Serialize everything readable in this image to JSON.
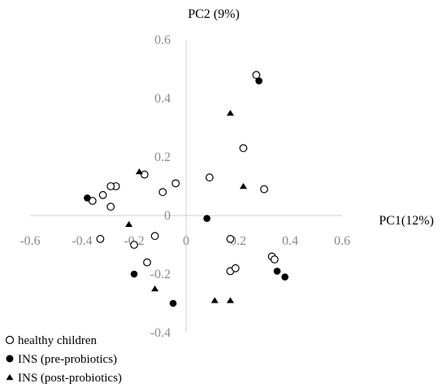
{
  "chart_data": {
    "type": "scatter",
    "xlabel": "PC1(12%)",
    "ylabel": "PC2 (9%)",
    "xlim": [
      -0.6,
      0.6
    ],
    "ylim": [
      -0.4,
      0.6
    ],
    "x_ticks": [
      -0.6,
      -0.4,
      -0.2,
      0,
      0.2,
      0.4,
      0.6
    ],
    "y_ticks": [
      0.6,
      0.4,
      0.2,
      0,
      -0.2,
      -0.4
    ],
    "x_tick_labels": [
      "-0.6",
      "-0.4",
      "-0.2",
      "0",
      "0.2",
      "0.4",
      "0.6"
    ],
    "y_tick_labels": [
      "0.6",
      "0.4",
      "0.2",
      "0",
      "-0.2",
      "-0.4"
    ],
    "grid": false,
    "legend_position": "bottom-left",
    "series": [
      {
        "name": "healthy children",
        "marker": "open-circle",
        "color": "#000000",
        "points": [
          [
            0.27,
            0.48
          ],
          [
            0.22,
            0.23
          ],
          [
            0.09,
            0.13
          ],
          [
            0.3,
            0.09
          ],
          [
            -0.04,
            0.11
          ],
          [
            -0.09,
            0.08
          ],
          [
            -0.16,
            0.14
          ],
          [
            -0.27,
            0.1
          ],
          [
            -0.29,
            0.1
          ],
          [
            -0.32,
            0.07
          ],
          [
            -0.36,
            0.05
          ],
          [
            -0.29,
            0.03
          ],
          [
            -0.33,
            -0.08
          ],
          [
            -0.12,
            -0.07
          ],
          [
            -0.2,
            -0.1
          ],
          [
            -0.15,
            -0.16
          ],
          [
            0.17,
            -0.08
          ],
          [
            0.17,
            -0.19
          ],
          [
            0.19,
            -0.18
          ],
          [
            0.33,
            -0.14
          ],
          [
            0.34,
            -0.15
          ]
        ]
      },
      {
        "name": "INS (pre-probiotics)",
        "marker": "filled-circle",
        "color": "#000000",
        "points": [
          [
            0.28,
            0.46
          ],
          [
            0.08,
            -0.01
          ],
          [
            -0.38,
            0.06
          ],
          [
            0.35,
            -0.19
          ],
          [
            0.38,
            -0.21
          ],
          [
            -0.2,
            -0.2
          ],
          [
            -0.05,
            -0.3
          ]
        ]
      },
      {
        "name": "INS (post-probiotics)",
        "marker": "filled-triangle",
        "color": "#000000",
        "points": [
          [
            0.17,
            0.35
          ],
          [
            0.22,
            0.1
          ],
          [
            -0.18,
            0.15
          ],
          [
            -0.22,
            -0.03
          ],
          [
            -0.12,
            -0.25
          ],
          [
            0.11,
            -0.29
          ],
          [
            0.17,
            -0.29
          ]
        ]
      }
    ]
  }
}
